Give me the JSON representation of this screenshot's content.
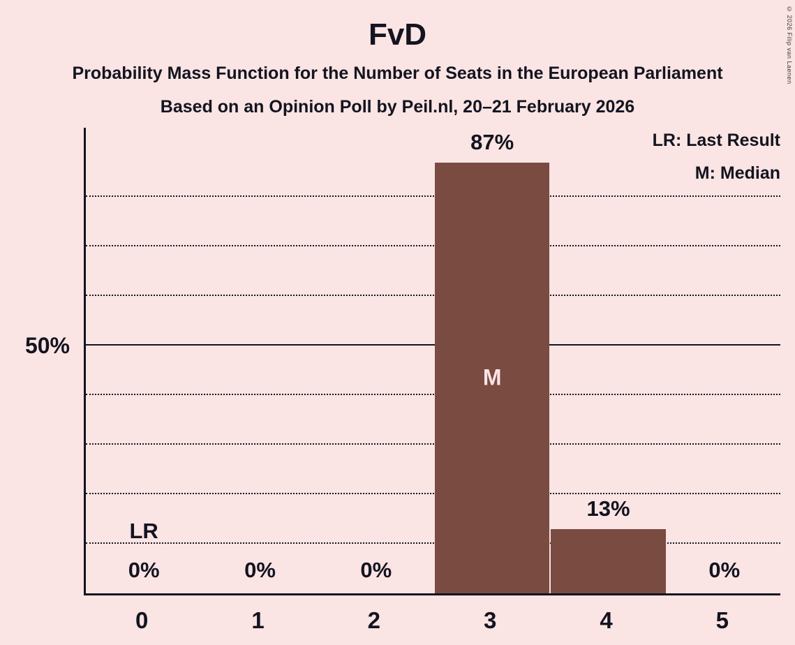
{
  "title": "FvD",
  "subtitle": "Probability Mass Function for the Number of Seats in the European Parliament",
  "poll_line": "Based on an Opinion Poll by Peil.nl, 20–21 February 2026",
  "copyright": "© 2026 Filip van Laenen",
  "legend": {
    "last_result": "LR: Last Result",
    "median": "M: Median"
  },
  "colors": {
    "background": "#fae4e4",
    "bar": "#7a4b41",
    "text": "#13141f",
    "bar_text": "#fae4e4"
  },
  "chart_data": {
    "type": "bar",
    "title": "FvD",
    "categories": [
      "0",
      "1",
      "2",
      "3",
      "4",
      "5"
    ],
    "values": [
      0,
      0,
      0,
      87,
      13,
      0
    ],
    "value_labels": [
      "0%",
      "0%",
      "0%",
      "87%",
      "13%",
      "0%"
    ],
    "xlabel": "",
    "ylabel": "",
    "ylim": [
      0,
      100
    ],
    "y_axis_tick": "50%",
    "solid_gridline_pct": 50,
    "dotted_gridlines_pct": [
      10,
      20,
      30,
      40,
      60,
      70,
      80
    ],
    "annotations": {
      "last_result_seat": "0",
      "last_result_label": "LR",
      "median_seat": "3",
      "median_label": "M"
    }
  }
}
